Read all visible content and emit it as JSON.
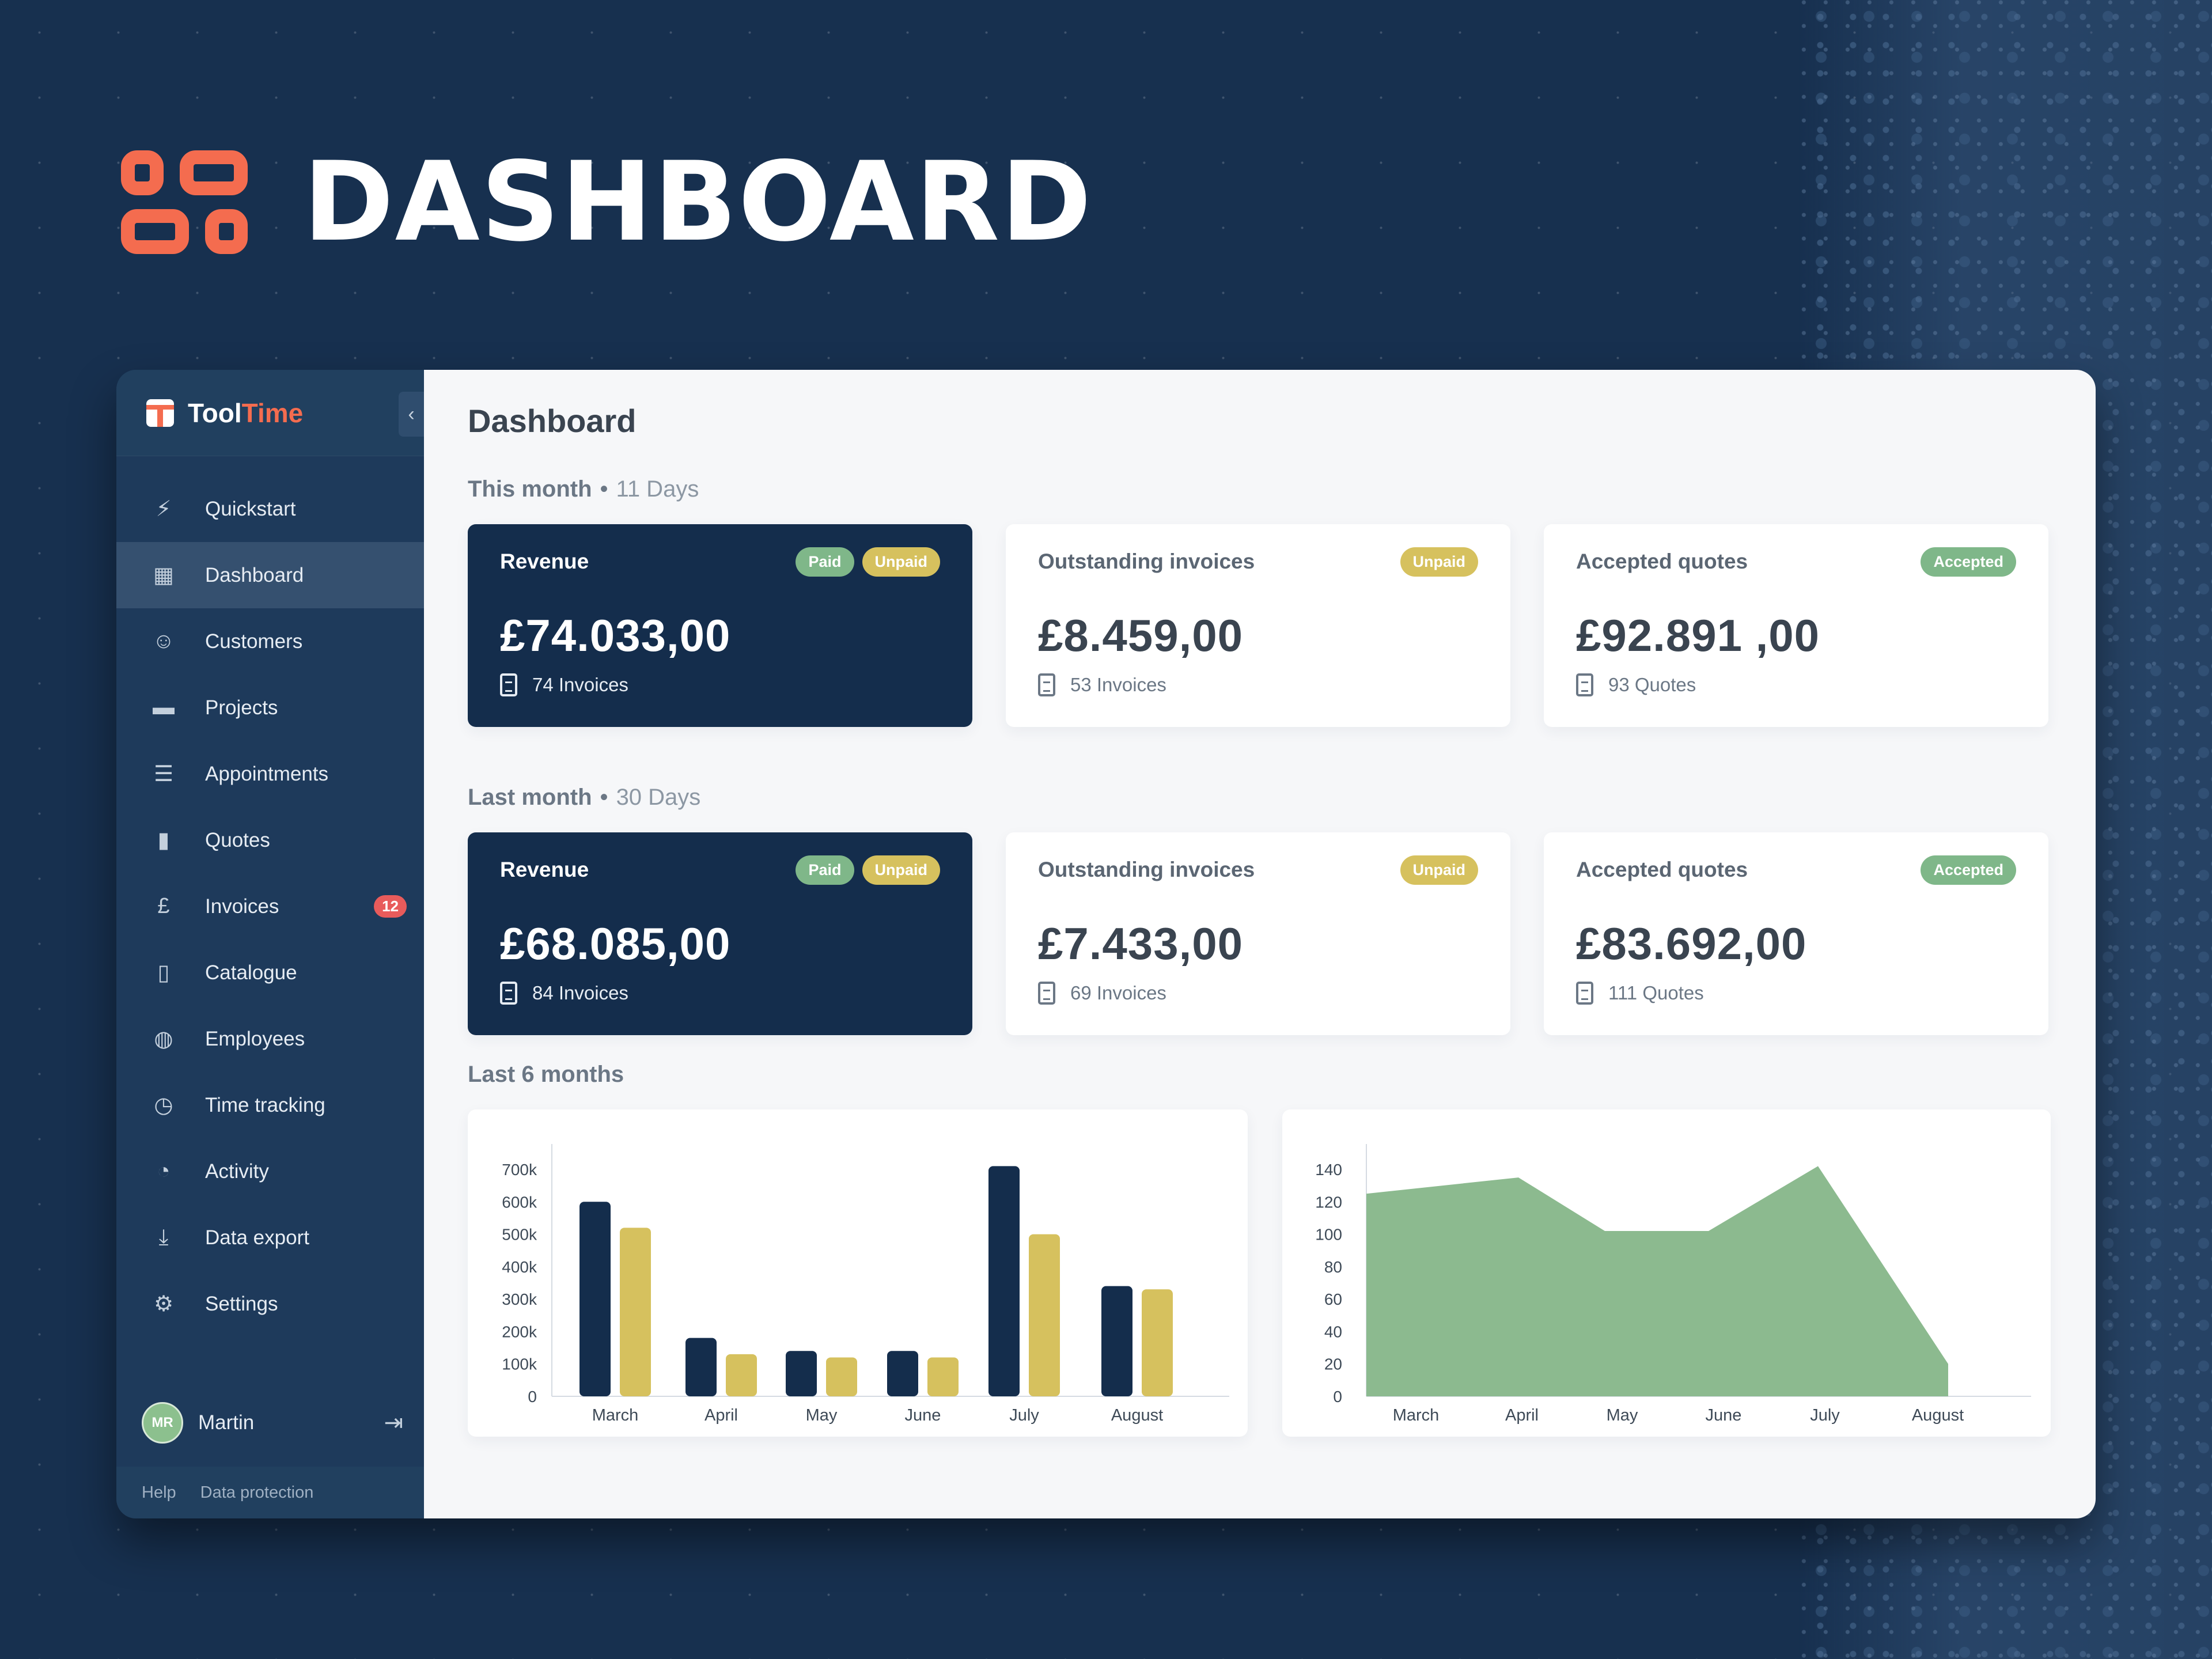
{
  "header": {
    "title": "DASHBOARD"
  },
  "sidebar": {
    "brand_first": "Tool",
    "brand_second": "Time",
    "collapse_icon": "chevron-left-icon",
    "items": [
      {
        "label": "Quickstart",
        "icon": "bolt-icon"
      },
      {
        "label": "Dashboard",
        "icon": "dashboard-icon",
        "active": true
      },
      {
        "label": "Customers",
        "icon": "customer-icon"
      },
      {
        "label": "Projects",
        "icon": "folder-icon"
      },
      {
        "label": "Appointments",
        "icon": "list-icon"
      },
      {
        "label": "Quotes",
        "icon": "file-icon"
      },
      {
        "label": "Invoices",
        "icon": "invoice-icon",
        "badge": "12"
      },
      {
        "label": "Catalogue",
        "icon": "book-icon"
      },
      {
        "label": "Employees",
        "icon": "users-icon"
      },
      {
        "label": "Time tracking",
        "icon": "stopwatch-icon"
      },
      {
        "label": "Activity",
        "icon": "activity-icon"
      },
      {
        "label": "Data export",
        "icon": "download-icon"
      },
      {
        "label": "Settings",
        "icon": "gear-icon"
      }
    ],
    "user": {
      "initials": "MR",
      "name": "Martin"
    },
    "footer": {
      "help": "Help",
      "data_protection": "Data protection"
    }
  },
  "main": {
    "title": "Dashboard",
    "this_month": {
      "label": "This month",
      "range": "11 Days",
      "cards": [
        {
          "title": "Revenue",
          "tags": [
            "Paid",
            "Unpaid"
          ],
          "amount": "£74.033,00",
          "count": "74 Invoices"
        },
        {
          "title": "Outstanding invoices",
          "tags": [
            "Unpaid"
          ],
          "amount": "£8.459,00",
          "count": "53 Invoices"
        },
        {
          "title": "Accepted quotes",
          "tags": [
            "Accepted"
          ],
          "amount": "£92.891 ,00",
          "count": "93 Quotes"
        }
      ]
    },
    "last_month": {
      "label": "Last month",
      "range": "30 Days",
      "cards": [
        {
          "title": "Revenue",
          "tags": [
            "Paid",
            "Unpaid"
          ],
          "amount": "£68.085,00",
          "count": "84 Invoices"
        },
        {
          "title": "Outstanding invoices",
          "tags": [
            "Unpaid"
          ],
          "amount": "£7.433,00",
          "count": "69 Invoices"
        },
        {
          "title": "Accepted quotes",
          "tags": [
            "Accepted"
          ],
          "amount": "£83.692,00",
          "count": "111 Quotes"
        }
      ]
    },
    "last_6_months_label": "Last 6 months"
  },
  "colors": {
    "accent": "#f46c4f",
    "navy": "#142d4c",
    "paid": "#7fb789",
    "unpaid": "#d6c15e",
    "area": "#8cba8f",
    "badge": "#e85b5b"
  },
  "chart_data": [
    {
      "type": "bar",
      "categories": [
        "March",
        "April",
        "May",
        "June",
        "July",
        "August"
      ],
      "series": [
        {
          "values": [
            600000,
            180000,
            140000,
            140000,
            710000,
            340000
          ]
        },
        {
          "values": [
            520000,
            130000,
            120000,
            120000,
            500000,
            330000
          ]
        }
      ],
      "ylim": [
        0,
        700000
      ],
      "yticks": [
        "0",
        "100k",
        "200k",
        "300k",
        "400k",
        "500k",
        "600k",
        "700k"
      ]
    },
    {
      "type": "area",
      "categories": [
        "March",
        "April",
        "May",
        "June",
        "July",
        "August"
      ],
      "values": [
        125,
        135,
        102,
        102,
        142,
        20
      ],
      "ylim": [
        0,
        140
      ],
      "yticks": [
        "0",
        "20",
        "40",
        "60",
        "80",
        "100",
        "120",
        "140"
      ]
    }
  ]
}
